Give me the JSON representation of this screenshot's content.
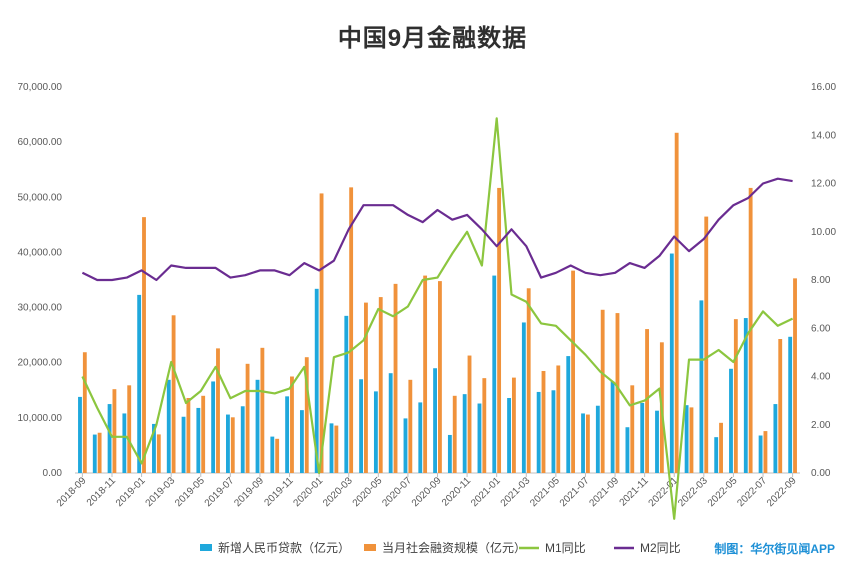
{
  "chart_data": {
    "type": "bar",
    "title": "中国9月金融数据",
    "credit": "制图：华尔街见闻APP",
    "x": [
      "2018-09",
      "2018-10",
      "2018-11",
      "2018-12",
      "2019-01",
      "2019-02",
      "2019-03",
      "2019-04",
      "2019-05",
      "2019-06",
      "2019-07",
      "2019-08",
      "2019-09",
      "2019-10",
      "2019-11",
      "2019-12",
      "2020-01",
      "2020-02",
      "2020-03",
      "2020-04",
      "2020-05",
      "2020-06",
      "2020-07",
      "2020-08",
      "2020-09",
      "2020-10",
      "2020-11",
      "2020-12",
      "2021-01",
      "2021-02",
      "2021-03",
      "2021-04",
      "2021-05",
      "2021-06",
      "2021-07",
      "2021-08",
      "2021-09",
      "2021-10",
      "2021-11",
      "2021-12",
      "2022-01",
      "2022-02",
      "2022-03",
      "2022-04",
      "2022-05",
      "2022-06",
      "2022-07",
      "2022-08",
      "2022-09"
    ],
    "x_tick_labels": [
      "2018-09",
      "2018-11",
      "2019-01",
      "2019-03",
      "2019-05",
      "2019-07",
      "2019-09",
      "2019-11",
      "2020-01",
      "2020-03",
      "2020-05",
      "2020-07",
      "2020-09",
      "2020-11",
      "2021-01",
      "2021-03",
      "2021-05",
      "2021-07",
      "2021-09",
      "2021-11",
      "2022-01",
      "2022-03",
      "2022-05",
      "2022-07",
      "2022-09"
    ],
    "y_left": {
      "ylim": [
        0,
        70000
      ],
      "ticks": [
        "0.00",
        "10,000.00",
        "20,000.00",
        "30,000.00",
        "40,000.00",
        "50,000.00",
        "60,000.00",
        "70,000.00"
      ]
    },
    "y_right": {
      "ylim": [
        0,
        16
      ],
      "ticks": [
        "0.00",
        "2.00",
        "4.00",
        "6.00",
        "8.00",
        "10.00",
        "12.00",
        "14.00",
        "16.00"
      ]
    },
    "grid": false,
    "legend_position": "bottom",
    "series": [
      {
        "name": "新增人民币贷款（亿元）",
        "type": "bar",
        "axis": "left",
        "color": "#1fa8dc",
        "values": [
          13800,
          6970,
          12500,
          10800,
          32300,
          8900,
          16900,
          10200,
          11800,
          16600,
          10600,
          12100,
          16900,
          6600,
          13900,
          11400,
          33400,
          9000,
          28500,
          17000,
          14800,
          18100,
          9900,
          12800,
          19000,
          6900,
          14300,
          12600,
          35800,
          13600,
          27300,
          14700,
          15000,
          21200,
          10800,
          12200,
          16600,
          8300,
          12700,
          11300,
          39800,
          12300,
          31300,
          6500,
          18900,
          28100,
          6800,
          12500,
          24700
        ]
      },
      {
        "name": "当月社会融资规模（亿元）",
        "type": "bar",
        "axis": "left",
        "color": "#f0923b",
        "values": [
          21900,
          7300,
          15200,
          15900,
          46400,
          7000,
          28600,
          13600,
          14000,
          22600,
          10100,
          19800,
          22700,
          6200,
          17500,
          21000,
          50700,
          8600,
          51800,
          30900,
          31900,
          34300,
          16900,
          35800,
          34800,
          14000,
          21300,
          17200,
          51700,
          17300,
          33500,
          18500,
          19500,
          36700,
          10600,
          29600,
          29000,
          15900,
          26100,
          23700,
          61700,
          11900,
          46500,
          9100,
          27900,
          51700,
          7600,
          24300,
          35300
        ]
      },
      {
        "name": "M1同比",
        "type": "line",
        "axis": "right",
        "color": "#8cc63f",
        "values": [
          4.0,
          2.7,
          1.5,
          1.5,
          0.4,
          2.0,
          4.6,
          2.9,
          3.4,
          4.4,
          3.1,
          3.4,
          3.4,
          3.3,
          3.5,
          4.4,
          0.0,
          4.8,
          5.0,
          5.5,
          6.8,
          6.5,
          6.9,
          8.0,
          8.1,
          9.1,
          10.0,
          8.6,
          14.7,
          7.4,
          7.1,
          6.2,
          6.1,
          5.5,
          4.9,
          4.2,
          3.7,
          2.8,
          3.0,
          3.5,
          -1.9,
          4.7,
          4.7,
          5.1,
          4.6,
          5.8,
          6.7,
          6.1,
          6.4
        ]
      },
      {
        "name": "M2同比",
        "type": "line",
        "axis": "right",
        "color": "#6a2c91",
        "values": [
          8.3,
          8.0,
          8.0,
          8.1,
          8.4,
          8.0,
          8.6,
          8.5,
          8.5,
          8.5,
          8.1,
          8.2,
          8.4,
          8.4,
          8.2,
          8.7,
          8.4,
          8.8,
          10.1,
          11.1,
          11.1,
          11.1,
          10.7,
          10.4,
          10.9,
          10.5,
          10.7,
          10.1,
          9.4,
          10.1,
          9.4,
          8.1,
          8.3,
          8.6,
          8.3,
          8.2,
          8.3,
          8.7,
          8.5,
          9.0,
          9.8,
          9.2,
          9.7,
          10.5,
          11.1,
          11.4,
          12.0,
          12.2,
          12.1
        ]
      }
    ]
  }
}
